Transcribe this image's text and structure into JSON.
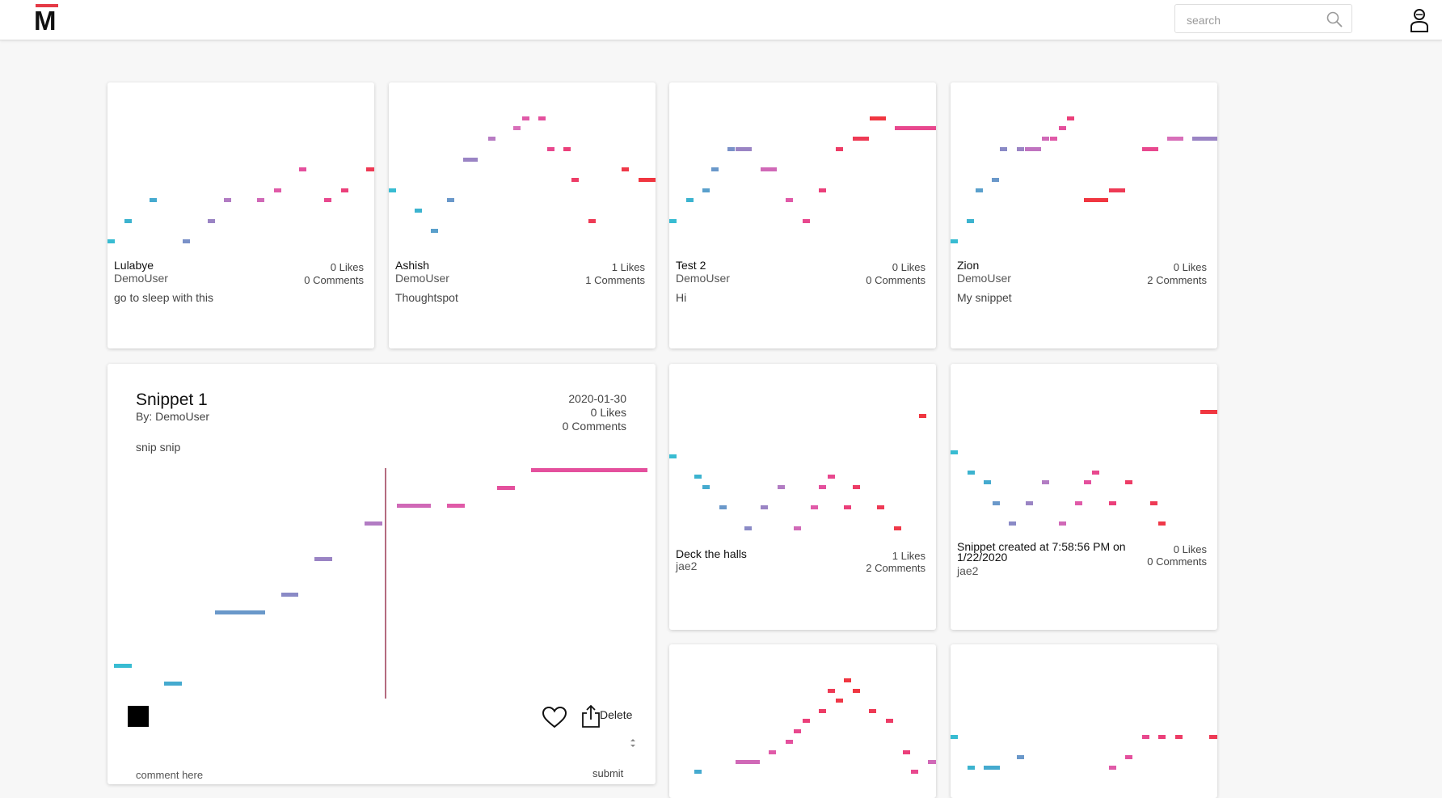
{
  "header": {
    "logo_letter": "M",
    "search_placeholder": "search",
    "icons": [
      "search-icon",
      "user-icon"
    ],
    "accent_color": "#e53945"
  },
  "snippets": [
    {
      "title": "Lulabye",
      "author": "DemoUser",
      "likes": "0 Likes",
      "comments": "0 Comments",
      "description": "go to sleep with this"
    },
    {
      "title": "Ashish",
      "author": "DemoUser",
      "likes": "1 Likes",
      "comments": "1 Comments",
      "description": "Thoughtspot"
    },
    {
      "title": "Test 2",
      "author": "DemoUser",
      "likes": "0 Likes",
      "comments": "0 Comments",
      "description": "Hi"
    },
    {
      "title": "Zion",
      "author": "DemoUser",
      "likes": "0 Likes",
      "comments": "2 Comments",
      "description": "My snippet"
    },
    {
      "title": "Deck the halls",
      "author": "jae2",
      "likes": "1 Likes",
      "comments": "2 Comments",
      "description": ""
    },
    {
      "title": "Snippet created at 7:58:56 PM on 1/22/2020",
      "author": "jae2",
      "likes": "0 Likes",
      "comments": "0 Comments",
      "description": ""
    }
  ],
  "expanded": {
    "title": "Snippet 1",
    "by": "By: DemoUser",
    "date": "2020-01-30",
    "likes": "0 Likes",
    "comments": "0 Comments",
    "description": "snip snip",
    "delete_label": "Delete",
    "comment_placeholder": "comment here",
    "submit_label": "submit",
    "playhead_color": "#9b3a57"
  }
}
